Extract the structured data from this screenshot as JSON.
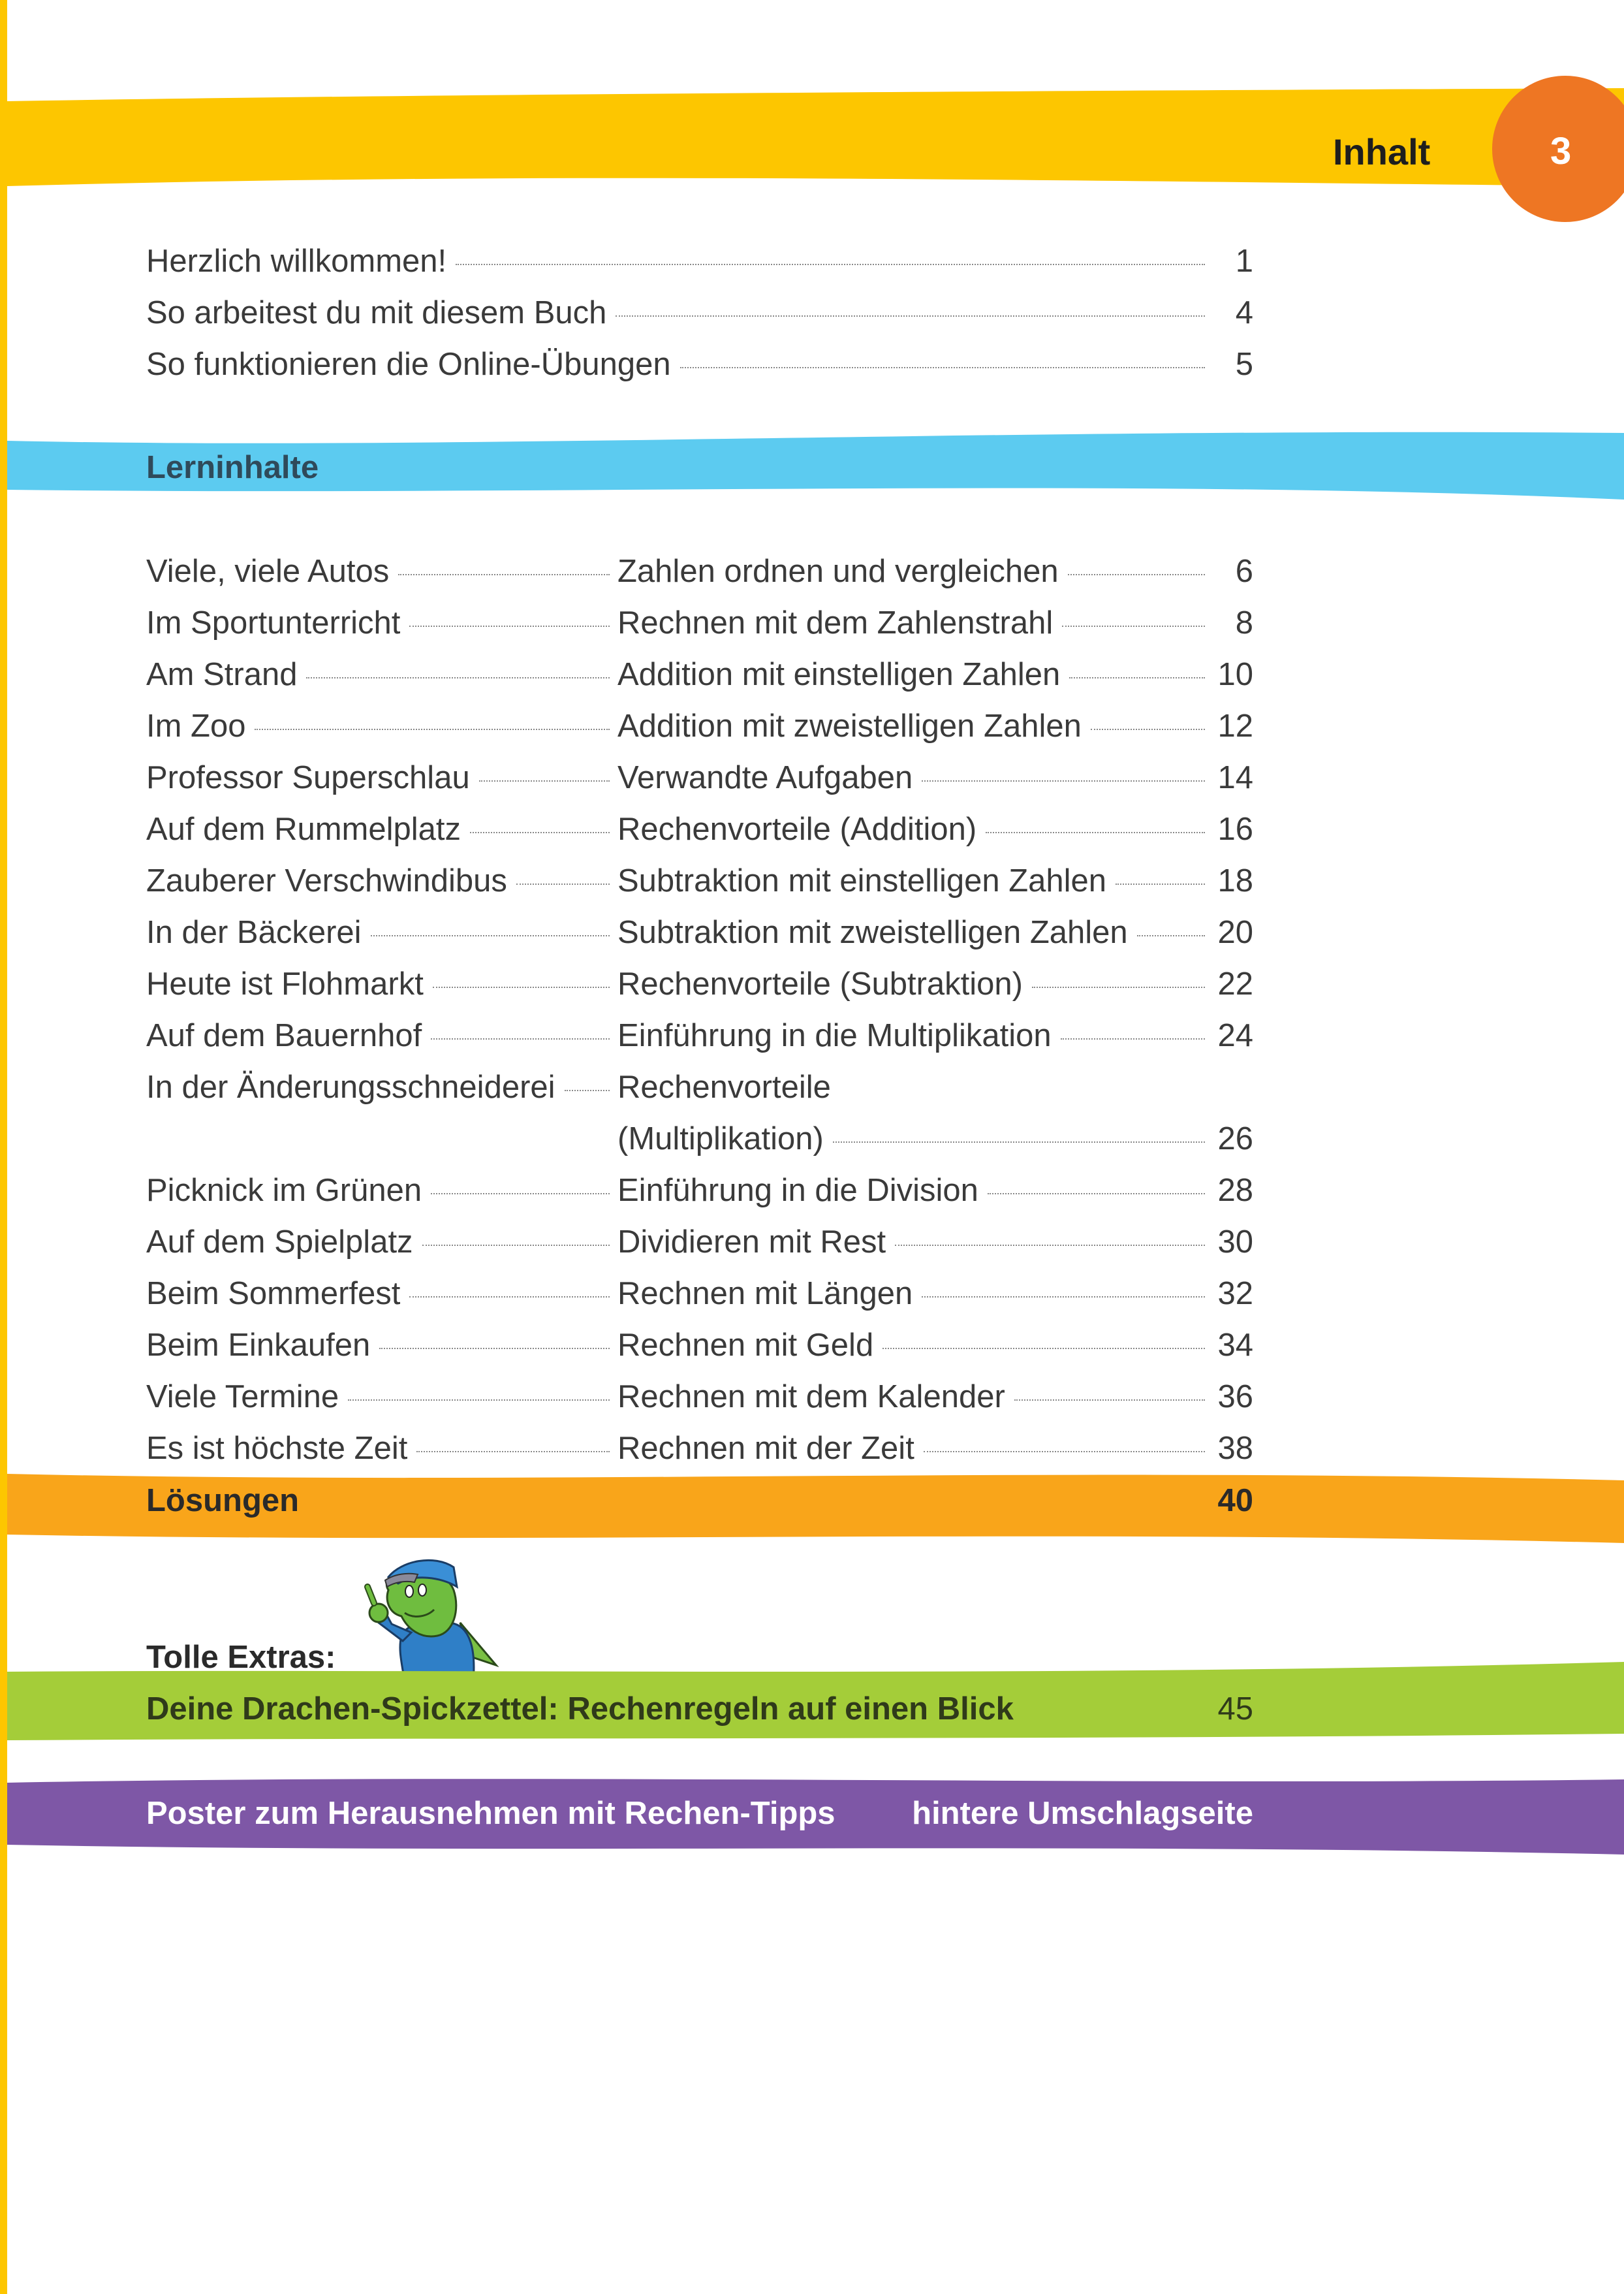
{
  "header": {
    "title": "Inhalt",
    "page_number": "3"
  },
  "colors": {
    "yellow": "#fdc600",
    "orange_circle": "#ee7623",
    "blue": "#5ccbf0",
    "orange_band": "#f9a51a",
    "green": "#a4cd39",
    "purple": "#7e57a6",
    "text": "#3a3a3a"
  },
  "intro": [
    {
      "title": "Herzlich willkommen!",
      "page": "1"
    },
    {
      "title": "So arbeitest du mit diesem Buch",
      "page": "4"
    },
    {
      "title": "So funktionieren die Online-Übungen",
      "page": "5"
    }
  ],
  "section_heading": "Lerninhalte",
  "lessons": [
    {
      "title": "Viele, viele Autos",
      "topic": "Zahlen ordnen und vergleichen",
      "page": "6"
    },
    {
      "title": "Im Sportunterricht",
      "topic": "Rechnen mit dem Zahlenstrahl",
      "page": "8"
    },
    {
      "title": "Am Strand",
      "topic": "Addition mit einstelligen Zahlen",
      "page": "10"
    },
    {
      "title": "Im Zoo",
      "topic": "Addition mit zweistelligen Zahlen",
      "page": "12"
    },
    {
      "title": "Professor Superschlau",
      "topic": "Verwandte Aufgaben",
      "page": "14"
    },
    {
      "title": "Auf dem Rummelplatz",
      "topic": "Rechenvorteile (Addition)",
      "page": "16"
    },
    {
      "title": "Zauberer Verschwindibus",
      "topic": "Subtraktion mit einstelligen Zahlen",
      "page": "18"
    },
    {
      "title": "In der Bäckerei",
      "topic": "Subtraktion mit zweistelligen Zahlen",
      "page": "20"
    },
    {
      "title": "Heute ist Flohmarkt",
      "topic": "Rechenvorteile (Subtraktion)",
      "page": "22"
    },
    {
      "title": "Auf dem Bauernhof",
      "topic": "Einführung in die Multiplikation",
      "page": "24"
    },
    {
      "title": "In der Änderungsschneiderei",
      "topic": "Rechenvorteile",
      "topic_line2": "(Multiplikation)",
      "page": "26"
    },
    {
      "title": "Picknick im Grünen",
      "topic": "Einführung in die Division",
      "page": "28"
    },
    {
      "title": "Auf dem Spielplatz",
      "topic": "Dividieren mit Rest",
      "page": "30"
    },
    {
      "title": "Beim Sommerfest",
      "topic": "Rechnen mit Längen",
      "page": "32"
    },
    {
      "title": "Beim Einkaufen",
      "topic": "Rechnen mit Geld",
      "page": "34"
    },
    {
      "title": "Viele Termine",
      "topic": "Rechnen mit dem Kalender",
      "page": "36"
    },
    {
      "title": "Es ist höchste Zeit",
      "topic": "Rechnen mit der Zeit",
      "page": "38"
    }
  ],
  "solutions": {
    "label": "Lösungen",
    "page": "40"
  },
  "extras": {
    "heading": "Tolle Extras:",
    "cheatsheet": {
      "label": "Deine Drachen-Spickzettel: Rechenregeln auf einen Blick",
      "page": "45"
    },
    "poster": {
      "label": "Poster zum Herausnehmen mit Rechen-Tipps",
      "location": "hintere Umschlagseite"
    }
  }
}
